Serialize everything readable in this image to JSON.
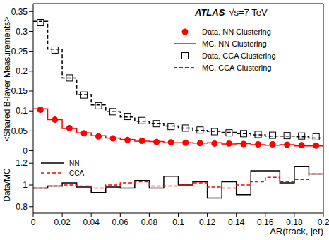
{
  "chart_data": [
    {
      "type": "histogram",
      "title": "ATLAS",
      "subtitle": "√s=7 TeV",
      "ylabel": "<Shared B-layer Measurements>",
      "bins": [
        0,
        0.01,
        0.02,
        0.03,
        0.04,
        0.05,
        0.06,
        0.07,
        0.08,
        0.09,
        0.1,
        0.11,
        0.12,
        0.13,
        0.14,
        0.15,
        0.16,
        0.17,
        0.18,
        0.19,
        0.2
      ],
      "xlim": [
        0,
        0.2
      ],
      "xticks": [
        0,
        0.02,
        0.04,
        0.06,
        0.08,
        0.1,
        0.12,
        0.14,
        0.16,
        0.18,
        0.2
      ],
      "ylim": [
        -0.015,
        0.37
      ],
      "yticks": [
        0,
        0.05,
        0.1,
        0.15,
        0.2,
        0.25,
        0.3,
        0.35
      ],
      "tick_labels": "y",
      "legend": "upper right",
      "series": [
        {
          "name": "Data, NN Clustering",
          "type": "scatter",
          "marker": "circle",
          "color": "#ff0000",
          "values": [
            0.103,
            0.078,
            0.057,
            0.044,
            0.036,
            0.031,
            0.027,
            0.025,
            0.022,
            0.021,
            0.02,
            0.019,
            0.018,
            0.018,
            0.017,
            0.016,
            0.016,
            0.015,
            0.014,
            0.013
          ]
        },
        {
          "name": "MC, NN Clustering",
          "type": "step",
          "line_style": "solid",
          "color": "#ff0000",
          "values": [
            0.105,
            0.078,
            0.056,
            0.045,
            0.038,
            0.032,
            0.028,
            0.024,
            0.023,
            0.02,
            0.02,
            0.019,
            0.02,
            0.017,
            0.018,
            0.015,
            0.014,
            0.015,
            0.012,
            0.012
          ]
        },
        {
          "name": "Data, CCA Clustering",
          "type": "scatter",
          "marker": "square",
          "color": "#000000",
          "values": [
            0.322,
            0.253,
            0.183,
            0.14,
            0.113,
            0.098,
            0.086,
            0.076,
            0.068,
            0.061,
            0.057,
            0.052,
            0.048,
            0.045,
            0.043,
            0.041,
            0.039,
            0.038,
            0.037,
            0.035
          ]
        },
        {
          "name": "MC, CCA Clustering",
          "type": "step",
          "line_style": "dashed",
          "color": "#000000",
          "values": [
            0.325,
            0.255,
            0.183,
            0.141,
            0.115,
            0.098,
            0.085,
            0.074,
            0.069,
            0.062,
            0.057,
            0.051,
            0.049,
            0.046,
            0.043,
            0.04,
            0.037,
            0.037,
            0.035,
            0.032
          ]
        }
      ]
    },
    {
      "type": "histogram",
      "ylabel": "Data/MC",
      "xlabel": "ΔR(track, jet)",
      "bins": [
        0,
        0.01,
        0.02,
        0.03,
        0.04,
        0.05,
        0.06,
        0.07,
        0.08,
        0.09,
        0.1,
        0.11,
        0.12,
        0.13,
        0.14,
        0.15,
        0.16,
        0.17,
        0.18,
        0.19,
        0.2
      ],
      "xlim": [
        0,
        0.2
      ],
      "xticks": [
        0,
        0.02,
        0.04,
        0.06,
        0.08,
        0.1,
        0.12,
        0.14,
        0.16,
        0.18,
        0.2
      ],
      "ylim": [
        0.74,
        1.26
      ],
      "yticks": [
        0.8,
        1,
        1.2
      ],
      "legend": "upper left",
      "series": [
        {
          "name": "NN",
          "type": "step",
          "line_style": "solid",
          "color": "#000000",
          "values": [
            0.97,
            0.99,
            1.02,
            0.98,
            0.93,
            0.98,
            0.97,
            1.04,
            0.97,
            1.08,
            1.0,
            1.03,
            0.88,
            1.03,
            0.91,
            1.13,
            1.13,
            1.02,
            1.17,
            1.1
          ]
        },
        {
          "name": "CCA",
          "type": "step",
          "line_style": "dashed",
          "color": "#ff0000",
          "values": [
            0.97,
            0.99,
            1.0,
            0.99,
            0.97,
            1.0,
            1.02,
            1.03,
            0.99,
            0.99,
            1.0,
            1.02,
            0.98,
            0.97,
            1.0,
            1.03,
            1.07,
            1.03,
            1.05,
            1.1
          ]
        }
      ]
    }
  ]
}
